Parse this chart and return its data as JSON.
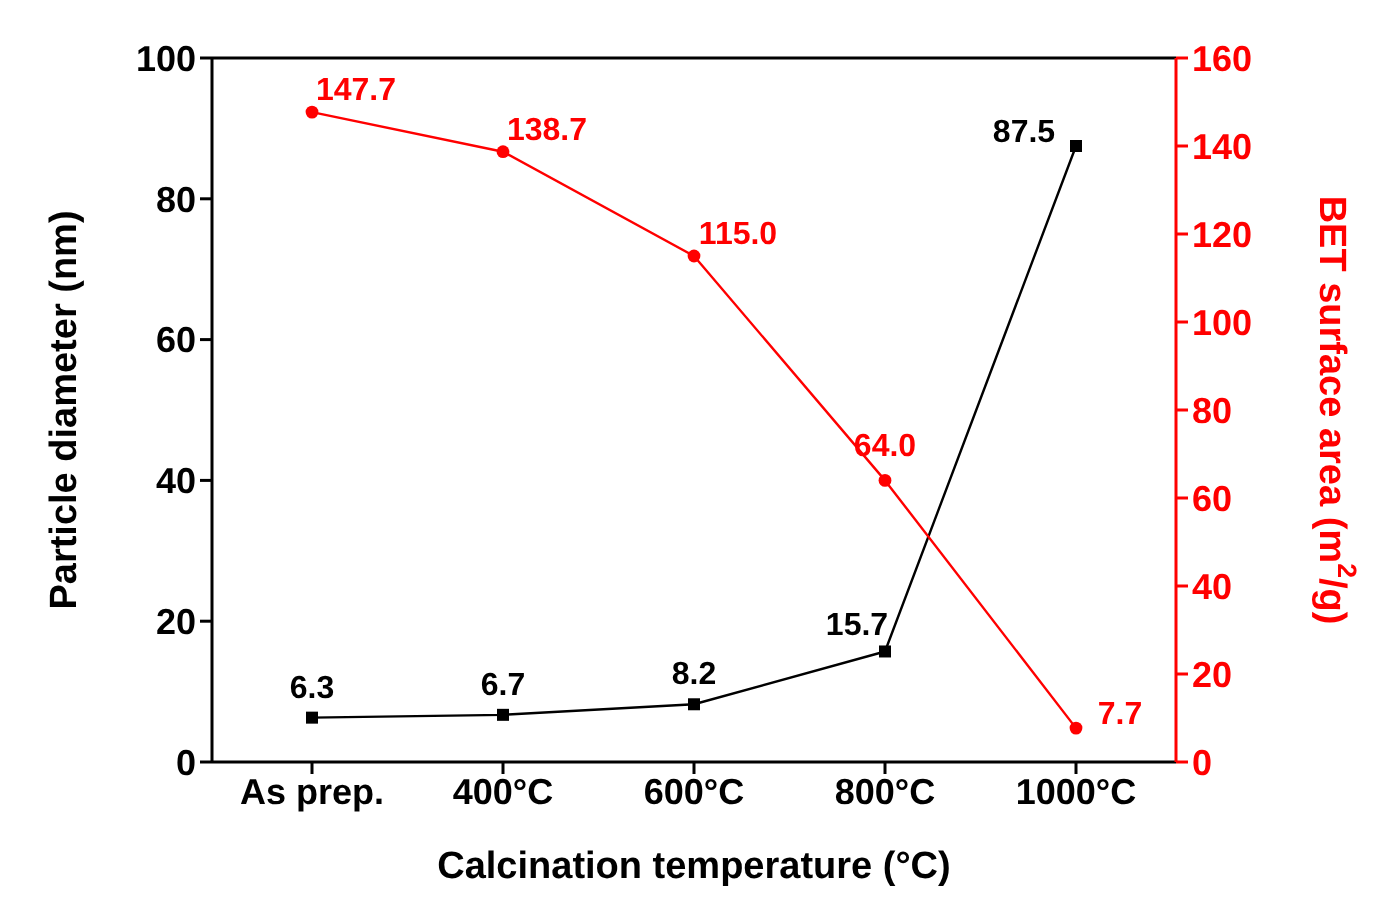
{
  "chart_data": {
    "type": "line",
    "xlabel": "Calcination temperature (°C)",
    "ylabel": "Particle diameter (nm)",
    "y2label": "BET surface area (m$^{2}$/g)",
    "categories": [
      "As prep.",
      "400°C",
      "600°C",
      "800°C",
      "1000°C"
    ],
    "series": [
      {
        "type": "line",
        "color": "#000000",
        "marker": "square",
        "values": [
          6.3,
          6.7,
          8.2,
          15.7,
          87.5
        ],
        "value_labels": [
          "6.3",
          "6.7",
          "8.2",
          "15.7",
          "87.5"
        ]
      },
      {
        "type": "line",
        "axis": "y2",
        "color": "#ff0000",
        "marker": "circle",
        "values": [
          147.7,
          138.7,
          115.0,
          64.0,
          7.7
        ],
        "value_labels": [
          "147.7",
          "138.7",
          "115.0",
          "64.0",
          "7.7"
        ]
      }
    ],
    "ylim": [
      0,
      100
    ],
    "yticks": [
      0,
      20,
      40,
      60,
      80,
      100
    ],
    "y2lim": [
      0,
      160
    ],
    "y2ticks": [
      0,
      20,
      40,
      60,
      80,
      100,
      120,
      140,
      160
    ]
  }
}
